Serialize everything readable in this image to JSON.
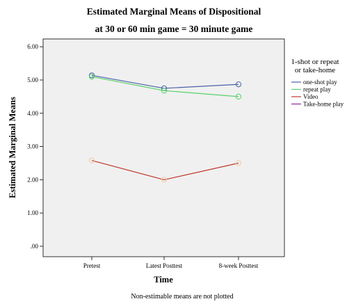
{
  "chart_data": {
    "type": "line",
    "title": "Estimated Marginal Means of Dispositional",
    "subtitle": "at 30 or 60 min game = 30 minute game",
    "xlabel": "Time",
    "ylabel": "Estimated Marginal Means",
    "categories": [
      "Pretest",
      "Latest Posttest",
      "8-week Posttest"
    ],
    "ylim": [
      0,
      6
    ],
    "yticks": [
      ".00",
      "1.00",
      "2.00",
      "3.00",
      "4.00",
      "5.00",
      "6.00"
    ],
    "grid": false,
    "legend_title": "1-shot or repeat or take-home",
    "legend_title_lines": [
      "1-shot or repeat",
      "or take-home"
    ],
    "legend_position": "right",
    "series": [
      {
        "name": "one-shot play",
        "color": "#4b61a8",
        "values": [
          5.14,
          4.75,
          4.87
        ]
      },
      {
        "name": "repeat play",
        "color": "#57d26a",
        "values": [
          5.1,
          4.68,
          4.5
        ]
      },
      {
        "name": "Video",
        "color": "#c0392b",
        "marker_color": "#f2c9a0",
        "values": [
          2.58,
          2.0,
          2.5
        ]
      },
      {
        "name": "Take-home play",
        "color": "#8a2a9e",
        "values": [
          null,
          null,
          null
        ]
      }
    ],
    "footnote": "Non-estimable means are not plotted"
  }
}
